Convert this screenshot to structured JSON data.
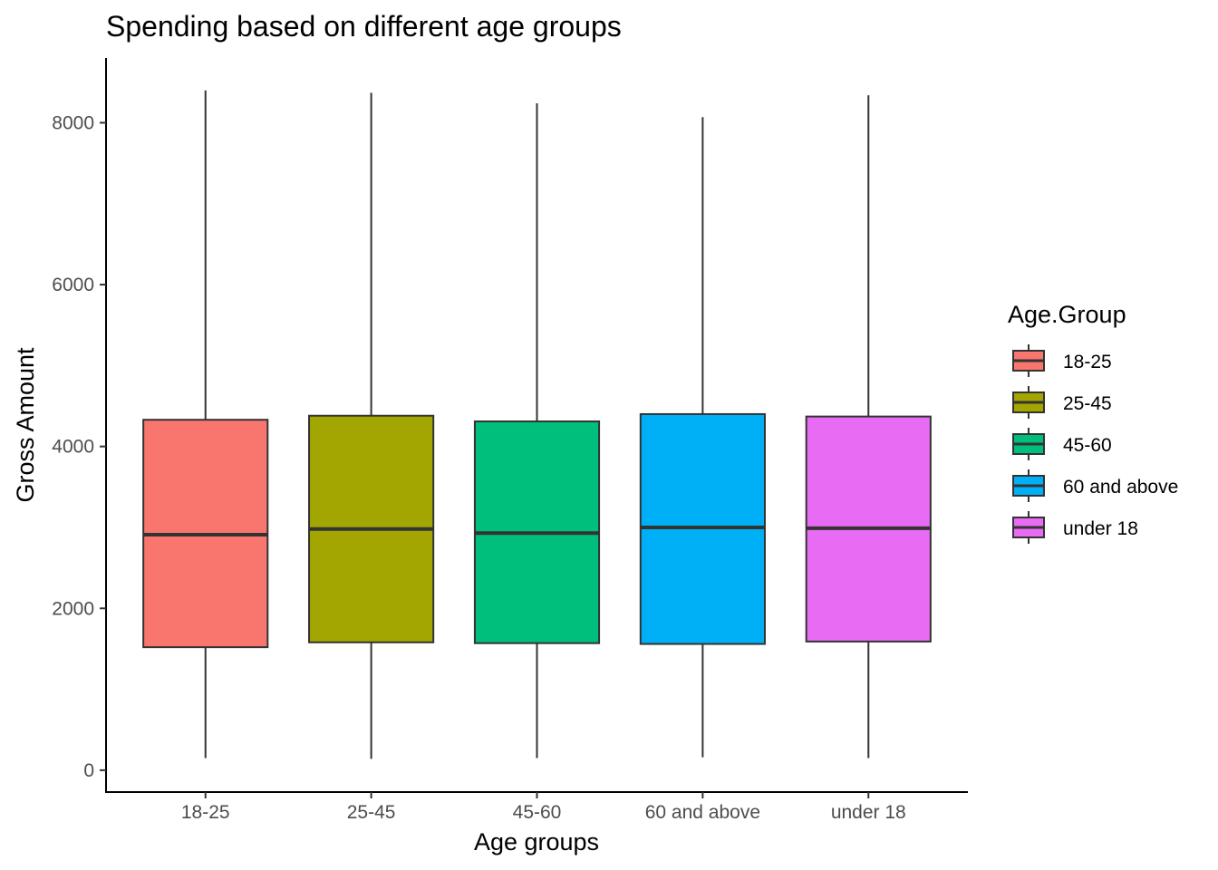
{
  "chart_data": {
    "type": "boxplot",
    "title": "Spending based on different age groups",
    "xlabel": "Age groups",
    "ylabel": "Gross Amount",
    "ylim": [
      -270,
      8800
    ],
    "yticks": [
      0,
      2000,
      4000,
      6000,
      8000
    ],
    "grid": false,
    "legend": {
      "title": "Age.Group",
      "position": "right",
      "entries": [
        "18-25",
        "25-45",
        "45-60",
        "60 and above",
        "under 18"
      ]
    },
    "categories": [
      "18-25",
      "25-45",
      "45-60",
      "60 and above",
      "under 18"
    ],
    "colors": [
      "#F8766D",
      "#A3A500",
      "#00BF7D",
      "#00B0F6",
      "#E76BF3"
    ],
    "boxes": [
      {
        "category": "18-25",
        "min": 150,
        "q1": 1520,
        "median": 2910,
        "q3": 4330,
        "max": 8400
      },
      {
        "category": "25-45",
        "min": 140,
        "q1": 1580,
        "median": 2980,
        "q3": 4380,
        "max": 8370
      },
      {
        "category": "45-60",
        "min": 150,
        "q1": 1570,
        "median": 2930,
        "q3": 4310,
        "max": 8240
      },
      {
        "category": "60 and above",
        "min": 160,
        "q1": 1560,
        "median": 3000,
        "q3": 4400,
        "max": 8070
      },
      {
        "category": "under 18",
        "min": 150,
        "q1": 1590,
        "median": 2990,
        "q3": 4370,
        "max": 8340
      }
    ]
  }
}
